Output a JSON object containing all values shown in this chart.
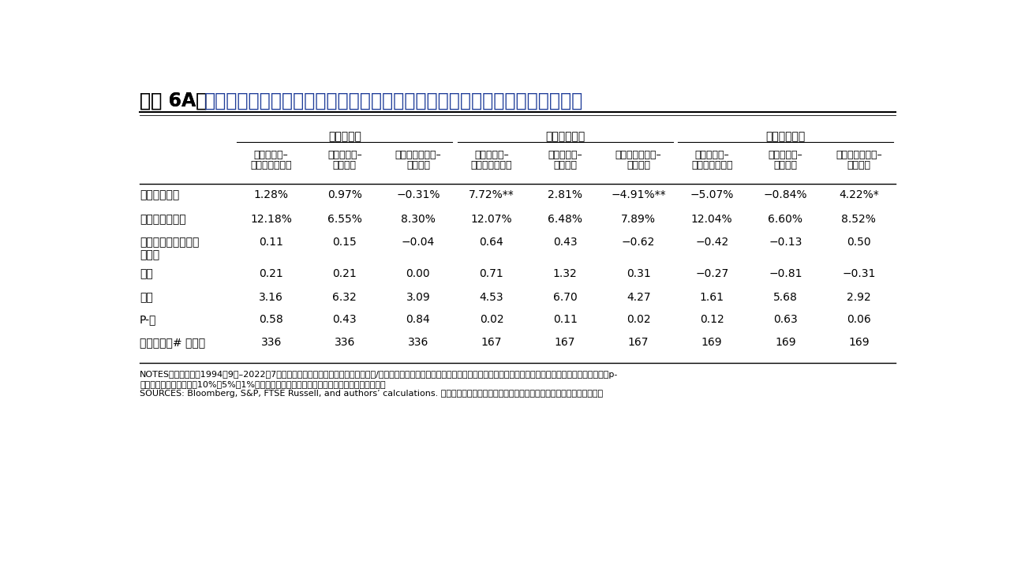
{
  "title_black": "図表 6A：",
  "title_blue": "シクリカル、ディフェンシブ・バスケットの成長局面別相対パフォーマンス",
  "group_headers": [
    "全サンプル",
    "成長加速局面",
    "成長減速局面"
  ],
  "col_h1": [
    "シクリカル–",
    "シクリカル–",
    "ディフェンシブ–",
    "シクリカル–",
    "シクリカル–",
    "ディフェンシブ–",
    "シクリカル–",
    "シクリカル–",
    "ディフェンシブ–"
  ],
  "col_h2": [
    "ディフェンシブ",
    "市場指数",
    "市場指数",
    "ディフェンシブ",
    "市場指数",
    "市場指数",
    "ディフェンシブ",
    "市場指数",
    "市場指数"
  ],
  "row_labels": [
    "年率リターン",
    "ボラティリティ",
    "インフォメーション\nレシオ",
    "歪度",
    "尖度",
    "P-値",
    "観測対象（# 月数）"
  ],
  "data": [
    [
      "1.28%",
      "0.97%",
      "−0.31%",
      "7.72%**",
      "2.81%",
      "−4.91%**",
      "−5.07%",
      "−0.84%",
      "4.22%*"
    ],
    [
      "12.18%",
      "6.55%",
      "8.30%",
      "12.07%",
      "6.48%",
      "7.89%",
      "12.04%",
      "6.60%",
      "8.52%"
    ],
    [
      "0.11",
      "0.15",
      "−0.04",
      "0.64",
      "0.43",
      "−0.62",
      "−0.42",
      "−0.13",
      "0.50"
    ],
    [
      "0.21",
      "0.21",
      "0.00",
      "0.71",
      "1.32",
      "0.31",
      "−0.27",
      "−0.81",
      "−0.31"
    ],
    [
      "3.16",
      "6.32",
      "3.09",
      "4.53",
      "6.70",
      "4.27",
      "1.61",
      "5.68",
      "2.92"
    ],
    [
      "0.58",
      "0.43",
      "0.84",
      "0.02",
      "0.11",
      "0.02",
      "0.12",
      "0.63",
      "0.06"
    ],
    [
      "336",
      "336",
      "336",
      "167",
      "167",
      "167",
      "169",
      "169",
      "169"
    ]
  ],
  "note1": "NOTES：分析期間は1994年9月–2022年7月。入手可能なデータで計測。シクリカル/ディフェンシブのセクター分類は図表２のルールに基づきます。＊、＊＊、＊＊＊は、両側検定のp-",
  "note2": "値の有意水準がそれぞれ10%、5%、1%で、リターンがゼロとなる帰無仮説の棄却を示します。",
  "source": "SOURCES: Bloomberg, S&P, FTSE Russell, and authors’ calculations. 過去のパフォーマンスは将来の結果を示唦するものではありません。",
  "title_color": "#1f3d99",
  "black": "#000000",
  "white": "#ffffff",
  "gray_line": "#555555"
}
